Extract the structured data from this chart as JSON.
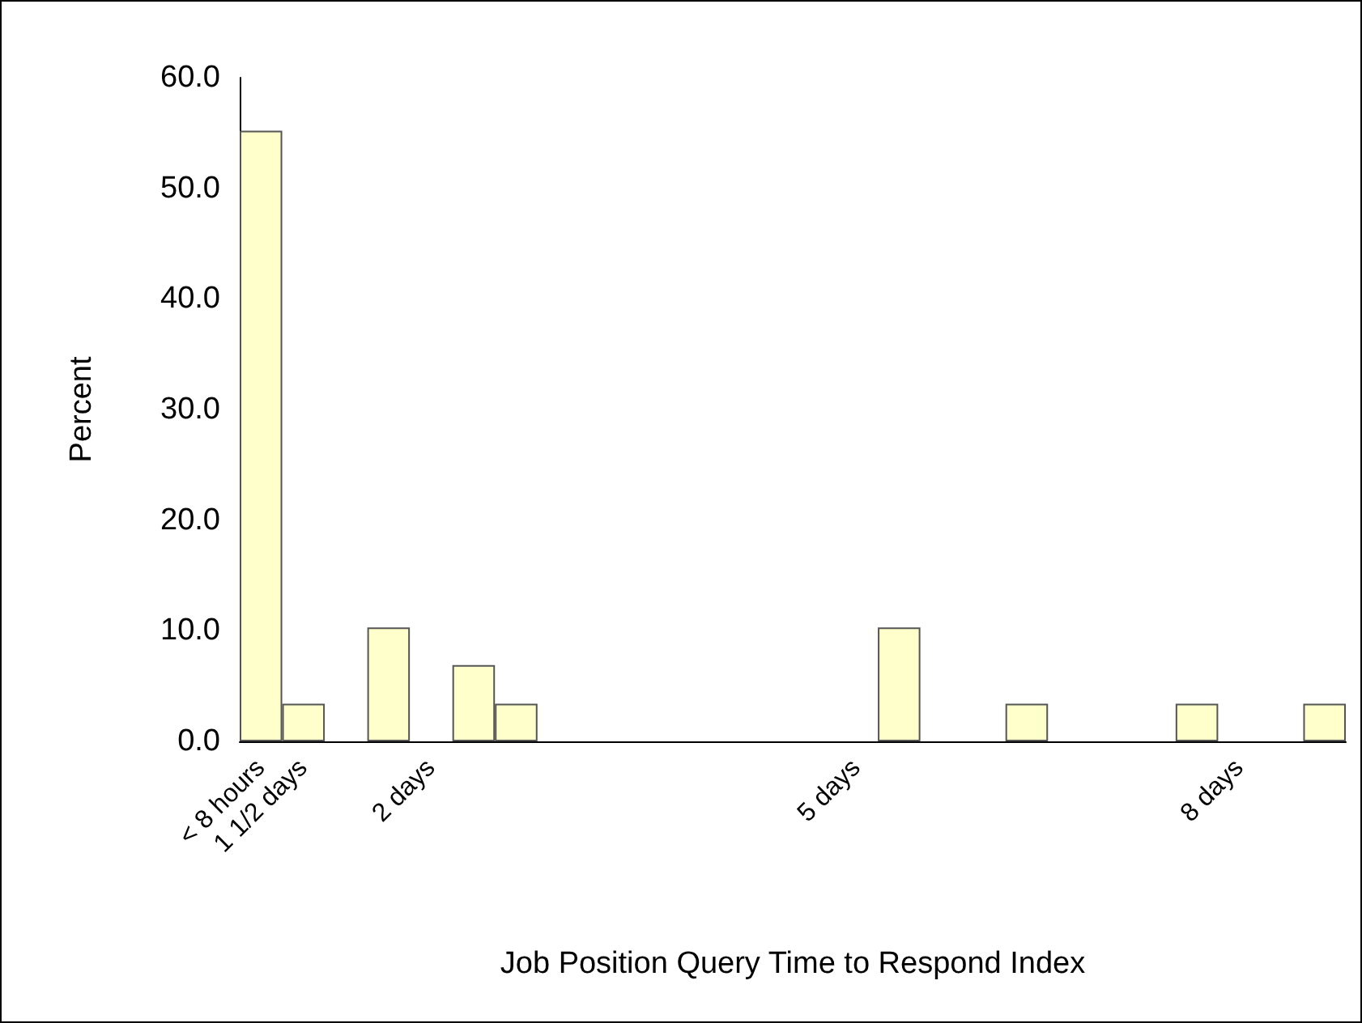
{
  "chart_data": {
    "type": "bar",
    "xlabel": "Job Position Query Time to Respond Index",
    "ylabel": "Percent",
    "categories": [
      "< 8 hours",
      "1 1/2 days",
      null,
      null,
      "2 days",
      null,
      null,
      null,
      null,
      null,
      null,
      null,
      null,
      null,
      "5 days",
      null,
      null,
      null,
      null,
      null,
      null,
      null,
      null,
      "8 days",
      null,
      null
    ],
    "values": [
      55.2,
      3.4,
      0,
      10.3,
      0,
      6.9,
      3.4,
      0,
      0,
      0,
      0,
      0,
      0,
      0,
      0,
      10.3,
      0,
      0,
      3.4,
      0,
      0,
      0,
      3.4,
      0,
      0,
      3.4
    ],
    "color": "#ffffcc",
    "ylim": [
      0,
      60
    ],
    "yticks": [
      {
        "value": 0,
        "label": "0.0"
      },
      {
        "value": 10,
        "label": "10.0"
      },
      {
        "value": 20,
        "label": "20.0"
      },
      {
        "value": 30,
        "label": "30.0"
      },
      {
        "value": 40,
        "label": "40.0"
      },
      {
        "value": 50,
        "label": "50.0"
      },
      {
        "value": 60,
        "label": "60.0"
      }
    ],
    "grid": false
  }
}
